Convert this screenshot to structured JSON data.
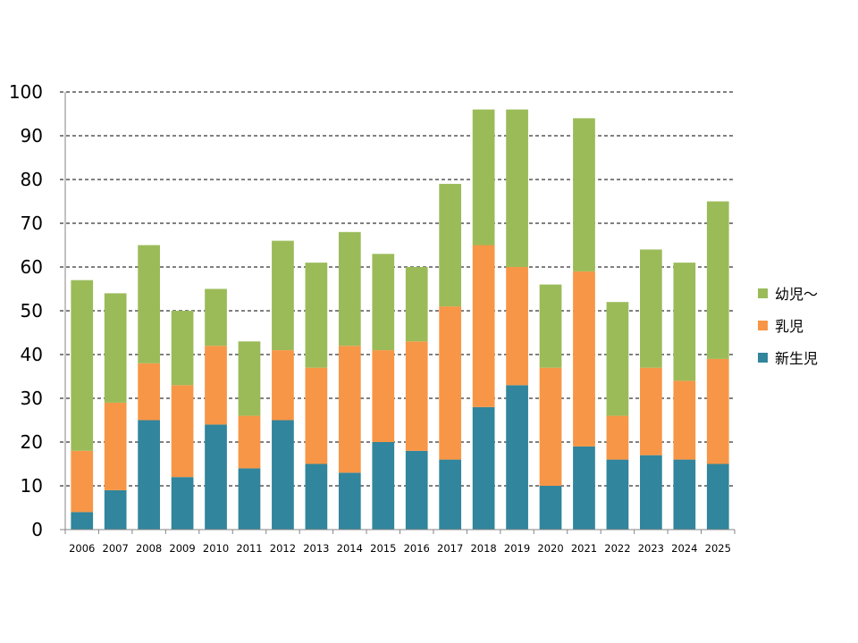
{
  "chart_data": {
    "type": "bar",
    "stacked": true,
    "title": "",
    "xlabel": "",
    "ylabel": "",
    "ylim": [
      0,
      100
    ],
    "yticks": [
      0,
      10,
      20,
      30,
      40,
      50,
      60,
      70,
      80,
      90,
      100
    ],
    "grid": true,
    "legend_position": "right",
    "categories": [
      "2006",
      "2007",
      "2008",
      "2009",
      "2010",
      "2011",
      "2012",
      "2013",
      "2014",
      "2015",
      "2016",
      "2017",
      "2018",
      "2019",
      "2020",
      "2021",
      "2022",
      "2023",
      "2024",
      "2025"
    ],
    "series": [
      {
        "name": "新生児",
        "color": "#31859C",
        "values": [
          4,
          9,
          25,
          12,
          24,
          14,
          25,
          15,
          13,
          20,
          18,
          16,
          28,
          33,
          10,
          19,
          16,
          17,
          16,
          15
        ]
      },
      {
        "name": "乳児",
        "color": "#F79646",
        "values": [
          14,
          20,
          13,
          21,
          18,
          12,
          16,
          22,
          29,
          21,
          25,
          35,
          37,
          27,
          27,
          40,
          10,
          20,
          18,
          24
        ]
      },
      {
        "name": "幼児～",
        "color": "#9BBB59",
        "values": [
          39,
          25,
          27,
          17,
          13,
          17,
          25,
          24,
          26,
          22,
          17,
          28,
          31,
          36,
          19,
          35,
          26,
          27,
          27,
          36
        ]
      }
    ],
    "legend_order": [
      "幼児～",
      "乳児",
      "新生児"
    ]
  }
}
